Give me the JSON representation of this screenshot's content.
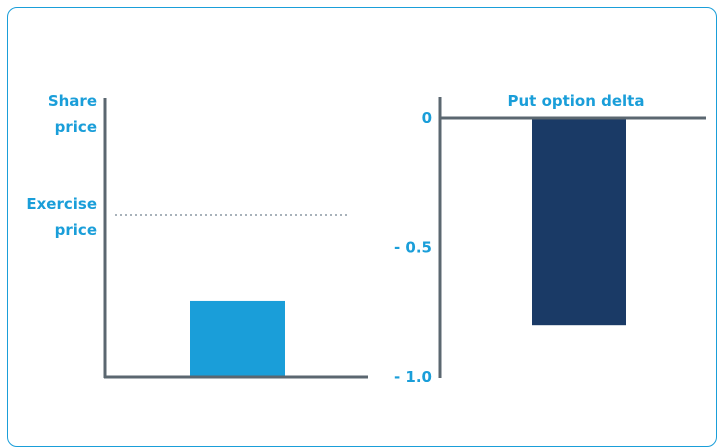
{
  "colors": {
    "frame": "#1a9ed9",
    "label": "#1a9ed9",
    "axis": "#5b6770",
    "dotted": "#8b98a3",
    "share_bar": "#1a9ed9",
    "delta_bar": "#1a3a66"
  },
  "chart_data": [
    {
      "type": "bar",
      "title": "",
      "ylabel": "Share price",
      "reference_line": {
        "label": "Exercise price",
        "style": "dotted"
      },
      "categories": [
        ""
      ],
      "values": [
        0.27
      ],
      "ylim": [
        0,
        1
      ],
      "grid": false,
      "note": "relative level; no numeric axis printed"
    },
    {
      "type": "bar",
      "title": "Put option delta",
      "ylim": [
        -1.0,
        0
      ],
      "ticks": [
        "0",
        "- 0.5",
        "- 1.0"
      ],
      "tick_values": [
        0,
        -0.5,
        -1.0
      ],
      "categories": [
        ""
      ],
      "values": [
        -0.8
      ],
      "grid": false
    }
  ]
}
